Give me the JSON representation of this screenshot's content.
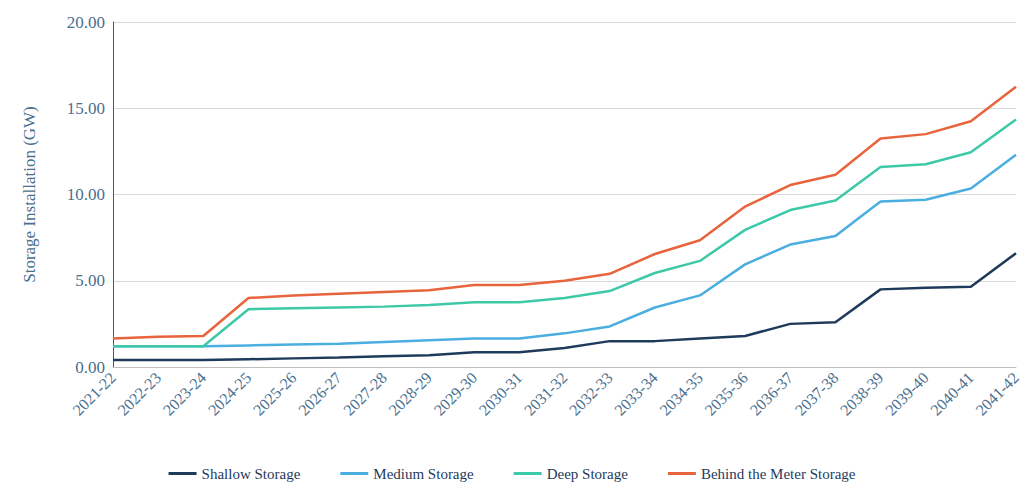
{
  "chart_data": {
    "type": "line",
    "stacked": true,
    "y_label": "Storage Installation (GW)",
    "categories": [
      "2021-22",
      "2022-23",
      "2023-24",
      "2024-25",
      "2025-26",
      "2026-27",
      "2027-28",
      "2028-29",
      "2029-30",
      "2030-31",
      "2031-32",
      "2032-33",
      "2033-34",
      "2034-35",
      "2035-36",
      "2036-37",
      "2037-38",
      "2038-39",
      "2039-40",
      "2040-41",
      "2041-42"
    ],
    "series": [
      {
        "name": "Shallow Storage",
        "color": "#1f3b5c",
        "values": [
          0.4,
          0.4,
          0.4,
          0.45,
          0.5,
          0.55,
          0.62,
          0.68,
          0.85,
          0.85,
          1.1,
          1.5,
          1.5,
          1.65,
          1.8,
          2.5,
          2.6,
          4.5,
          4.6,
          4.65,
          6.6
        ]
      },
      {
        "name": "Medium Storage",
        "color": "#4aaee0",
        "values": [
          0.8,
          0.8,
          0.8,
          0.8,
          0.8,
          0.8,
          0.83,
          0.87,
          0.8,
          0.8,
          0.85,
          0.85,
          1.95,
          2.5,
          4.15,
          4.6,
          5.0,
          5.1,
          5.1,
          5.7,
          5.7
        ]
      },
      {
        "name": "Deep Storage",
        "color": "#3dc9a8",
        "values": [
          0,
          0,
          0,
          2.1,
          2.1,
          2.1,
          2.05,
          2.05,
          2.1,
          2.1,
          2.05,
          2.05,
          2.0,
          2.0,
          2.0,
          2.0,
          2.05,
          2.0,
          2.05,
          2.1,
          2.05
        ]
      },
      {
        "name": "Behind the Meter Storage",
        "color": "#e8643c",
        "values": [
          0.45,
          0.55,
          0.6,
          0.65,
          0.75,
          0.8,
          0.85,
          0.85,
          1.0,
          1.0,
          1.0,
          1.0,
          1.1,
          1.2,
          1.35,
          1.45,
          1.5,
          1.65,
          1.75,
          1.8,
          1.9
        ]
      }
    ],
    "ylim": [
      0,
      20
    ],
    "yticks": [
      {
        "value": 0,
        "label": "0.00"
      },
      {
        "value": 5,
        "label": "5.00"
      },
      {
        "value": 10,
        "label": "10.00"
      },
      {
        "value": 15,
        "label": "15.00"
      },
      {
        "value": 20,
        "label": "20.00"
      }
    ],
    "grid": true,
    "legend": "bottom"
  }
}
